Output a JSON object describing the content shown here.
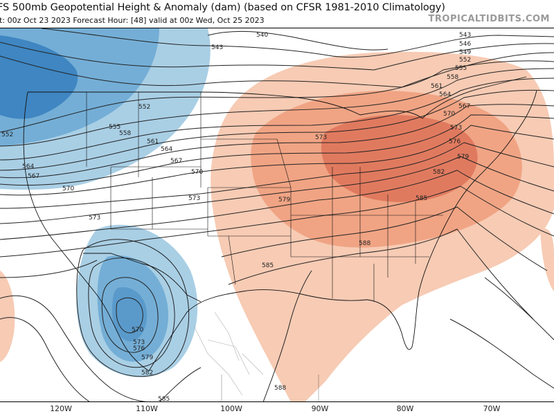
{
  "header": {
    "title": "FS 500mb Geopotential Height & Anomaly (dam) (based on CFSR 1981-2010 Climatology)",
    "subtitle": "it: 00z Oct 23 2023   Forecast Hour: [48]   valid at 00z Wed, Oct 25 2023",
    "brand": "TROPICALTIDBITS.COM"
  },
  "longitude_labels": [
    "120W",
    "110W",
    "100W",
    "90W",
    "80W",
    "70W"
  ],
  "contour_labels": {
    "c540": "540",
    "c543": "543",
    "c543b": "543",
    "c546": "546",
    "c549": "549",
    "c552a": "552",
    "c552b": "552",
    "c552c": "552",
    "c555a": "555",
    "c555b": "555",
    "c558a": "558",
    "c558b": "558",
    "c561a": "561",
    "c561b": "561",
    "c564a": "564",
    "c564b": "564",
    "c564c": "564",
    "c567a": "567",
    "c567b": "567",
    "c567c": "567",
    "c570a": "570",
    "c570b": "570",
    "c570c": "570",
    "c570d": "570",
    "c573a": "573",
    "c573b": "573",
    "c573c": "573",
    "c573d": "573",
    "c573e": "573",
    "c576a": "576",
    "c576b": "576",
    "c579a": "579",
    "c579b": "579",
    "c579c": "579",
    "c582a": "582",
    "c582b": "582",
    "c585a": "585",
    "c585b": "585",
    "c585c": "585",
    "c588a": "588",
    "c588b": "588"
  },
  "colors": {
    "negative_anomaly_light": "#a9cfe5",
    "negative_anomaly_mid": "#74aed6",
    "negative_anomaly_strong": "#3f86c2",
    "positive_anomaly_light": "#f7cbb4",
    "positive_anomaly_mid": "#f0a484",
    "positive_anomaly_strong": "#e07a5f",
    "contour_line": "#222222",
    "border_line": "#111111"
  }
}
